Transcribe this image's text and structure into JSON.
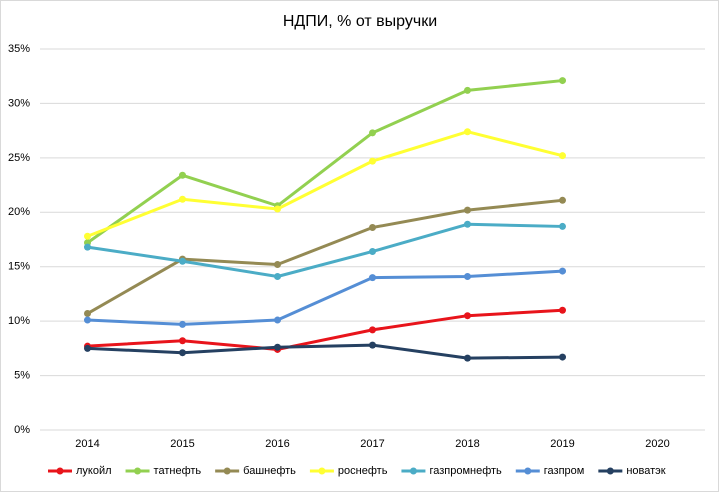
{
  "chart_data": {
    "type": "line",
    "title": "НДПИ, % от выручки",
    "categories": [
      "2014",
      "2015",
      "2016",
      "2017",
      "2018",
      "2019",
      "2020"
    ],
    "ylim": [
      0,
      35
    ],
    "yticks": [
      {
        "value": 0,
        "label": "0%"
      },
      {
        "value": 5,
        "label": "5%"
      },
      {
        "value": 10,
        "label": "10%"
      },
      {
        "value": 15,
        "label": "15%"
      },
      {
        "value": 20,
        "label": "20%"
      },
      {
        "value": 25,
        "label": "25%"
      },
      {
        "value": 30,
        "label": "30%"
      },
      {
        "value": 35,
        "label": "35%"
      }
    ],
    "grid": true,
    "legend": "bottom",
    "series": [
      {
        "name": "лукойл",
        "color": "#e8141b",
        "values": [
          7.7,
          8.2,
          7.4,
          9.2,
          10.5,
          11.0,
          null
        ]
      },
      {
        "name": "татнефть",
        "color": "#92d050",
        "values": [
          17.2,
          23.4,
          20.6,
          27.3,
          31.2,
          32.1,
          null
        ]
      },
      {
        "name": "башнефть",
        "color": "#948a54",
        "values": [
          10.7,
          15.7,
          15.2,
          18.6,
          20.2,
          21.1,
          null
        ]
      },
      {
        "name": "роснефть",
        "color": "#ffff33",
        "values": [
          17.8,
          21.2,
          20.3,
          24.7,
          27.4,
          25.2,
          null
        ]
      },
      {
        "name": "газпромнефть",
        "color": "#4bacc6",
        "values": [
          16.8,
          15.5,
          14.1,
          16.4,
          18.9,
          18.7,
          null
        ]
      },
      {
        "name": "газпром",
        "color": "#558ed5",
        "values": [
          10.1,
          9.7,
          10.1,
          14.0,
          14.1,
          14.6,
          null
        ]
      },
      {
        "name": "новатэк",
        "color": "#254061",
        "values": [
          7.5,
          7.1,
          7.6,
          7.8,
          6.6,
          6.7,
          null
        ]
      }
    ]
  }
}
